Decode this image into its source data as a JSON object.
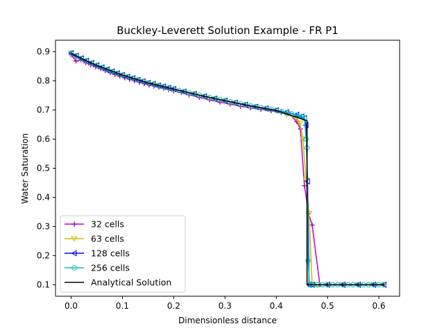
{
  "chart_data": {
    "type": "line",
    "title": "Buckley-Leverett Solution Example - FR P1",
    "xlabel": "Dimensionless distance",
    "ylabel": "Water Saturation",
    "xlim": [
      -0.0305,
      0.6405
    ],
    "ylim": [
      0.0605,
      0.9395
    ],
    "xticks": [
      "0.0",
      "0.1",
      "0.2",
      "0.3",
      "0.4",
      "0.5",
      "0.6"
    ],
    "yticks": [
      "0.1",
      "0.2",
      "0.3",
      "0.4",
      "0.5",
      "0.6",
      "0.7",
      "0.8",
      "0.9"
    ],
    "grid": false,
    "legend_position": "lower-left",
    "series": [
      {
        "name": "32 cells",
        "color": "#bf00bf",
        "marker": "plus",
        "x": [
          0.0,
          0.0095,
          0.019,
          0.0285,
          0.038,
          0.0475,
          0.057,
          0.0665,
          0.076,
          0.0855,
          0.095,
          0.1045,
          0.114,
          0.1235,
          0.133,
          0.1425,
          0.152,
          0.1615,
          0.171,
          0.1805,
          0.19,
          0.2,
          0.215,
          0.23,
          0.25,
          0.27,
          0.29,
          0.31,
          0.33,
          0.35,
          0.37,
          0.39,
          0.41,
          0.425,
          0.44,
          0.447,
          0.455,
          0.463,
          0.47,
          0.485,
          0.5,
          0.53,
          0.56,
          0.59,
          0.61
        ],
        "y": [
          0.89,
          0.868,
          0.872,
          0.862,
          0.855,
          0.848,
          0.842,
          0.835,
          0.828,
          0.822,
          0.816,
          0.81,
          0.805,
          0.8,
          0.795,
          0.79,
          0.786,
          0.782,
          0.778,
          0.774,
          0.77,
          0.765,
          0.76,
          0.752,
          0.743,
          0.735,
          0.727,
          0.72,
          0.713,
          0.707,
          0.702,
          0.697,
          0.692,
          0.688,
          0.66,
          0.635,
          0.44,
          0.345,
          0.305,
          0.1,
          0.1,
          0.1,
          0.1,
          0.1,
          0.1
        ]
      },
      {
        "name": "63 cells",
        "color": "#bfbf00",
        "marker": "triangle-down",
        "x": [
          0.0,
          0.01,
          0.02,
          0.03,
          0.04,
          0.05,
          0.06,
          0.07,
          0.08,
          0.09,
          0.1,
          0.11,
          0.12,
          0.13,
          0.14,
          0.15,
          0.16,
          0.17,
          0.18,
          0.19,
          0.2,
          0.22,
          0.24,
          0.26,
          0.28,
          0.3,
          0.32,
          0.34,
          0.36,
          0.38,
          0.4,
          0.42,
          0.44,
          0.446,
          0.452,
          0.458,
          0.464,
          0.47,
          0.48,
          0.5,
          0.53,
          0.56,
          0.59,
          0.61
        ],
        "y": [
          0.895,
          0.885,
          0.876,
          0.868,
          0.86,
          0.852,
          0.845,
          0.838,
          0.831,
          0.825,
          0.819,
          0.813,
          0.808,
          0.803,
          0.798,
          0.793,
          0.788,
          0.784,
          0.779,
          0.775,
          0.771,
          0.762,
          0.754,
          0.746,
          0.738,
          0.731,
          0.724,
          0.717,
          0.711,
          0.704,
          0.698,
          0.684,
          0.672,
          0.655,
          0.6,
          0.46,
          0.345,
          0.1,
          0.1,
          0.1,
          0.1,
          0.1,
          0.1,
          0.1
        ]
      },
      {
        "name": "128 cells",
        "color": "#0000ff",
        "marker": "triangle-left",
        "x": [
          0.0,
          0.01,
          0.02,
          0.03,
          0.04,
          0.05,
          0.06,
          0.07,
          0.08,
          0.09,
          0.1,
          0.11,
          0.12,
          0.13,
          0.14,
          0.15,
          0.16,
          0.17,
          0.18,
          0.19,
          0.2,
          0.22,
          0.24,
          0.26,
          0.28,
          0.3,
          0.32,
          0.34,
          0.36,
          0.38,
          0.4,
          0.42,
          0.44,
          0.45,
          0.455,
          0.458,
          0.461,
          0.464,
          0.47,
          0.5,
          0.53,
          0.56,
          0.59,
          0.61
        ],
        "y": [
          0.895,
          0.886,
          0.877,
          0.869,
          0.861,
          0.853,
          0.846,
          0.839,
          0.832,
          0.826,
          0.82,
          0.814,
          0.809,
          0.803,
          0.798,
          0.793,
          0.789,
          0.784,
          0.78,
          0.776,
          0.772,
          0.763,
          0.755,
          0.747,
          0.739,
          0.732,
          0.725,
          0.718,
          0.711,
          0.705,
          0.699,
          0.692,
          0.684,
          0.678,
          0.672,
          0.648,
          0.455,
          0.1,
          0.1,
          0.1,
          0.1,
          0.1,
          0.1,
          0.1
        ]
      },
      {
        "name": "256 cells",
        "color": "#00bfbf",
        "marker": "circle",
        "x": [
          0.0,
          0.01,
          0.02,
          0.03,
          0.04,
          0.05,
          0.06,
          0.07,
          0.08,
          0.09,
          0.1,
          0.11,
          0.12,
          0.13,
          0.14,
          0.15,
          0.16,
          0.17,
          0.18,
          0.19,
          0.2,
          0.21,
          0.22,
          0.23,
          0.24,
          0.25,
          0.26,
          0.27,
          0.28,
          0.29,
          0.3,
          0.31,
          0.32,
          0.33,
          0.34,
          0.35,
          0.36,
          0.37,
          0.38,
          0.39,
          0.4,
          0.41,
          0.42,
          0.43,
          0.44,
          0.45,
          0.455,
          0.458,
          0.46,
          0.462,
          0.465,
          0.47,
          0.48,
          0.49,
          0.5,
          0.51,
          0.52,
          0.53,
          0.54,
          0.55,
          0.56,
          0.57,
          0.58,
          0.59,
          0.6,
          0.61
        ],
        "y": [
          0.895,
          0.886,
          0.877,
          0.869,
          0.861,
          0.853,
          0.846,
          0.839,
          0.832,
          0.826,
          0.82,
          0.814,
          0.809,
          0.803,
          0.798,
          0.793,
          0.789,
          0.784,
          0.78,
          0.776,
          0.772,
          0.767,
          0.763,
          0.759,
          0.755,
          0.751,
          0.747,
          0.743,
          0.739,
          0.736,
          0.732,
          0.728,
          0.725,
          0.721,
          0.718,
          0.714,
          0.711,
          0.708,
          0.705,
          0.702,
          0.699,
          0.695,
          0.691,
          0.687,
          0.682,
          0.678,
          0.672,
          0.6,
          0.57,
          0.183,
          0.1,
          0.1,
          0.1,
          0.1,
          0.1,
          0.1,
          0.1,
          0.1,
          0.1,
          0.1,
          0.1,
          0.1,
          0.1,
          0.1,
          0.1,
          0.1
        ]
      },
      {
        "name": "Analytical Solution",
        "color": "#000000",
        "marker": "none",
        "x": [
          0.0,
          0.02,
          0.05,
          0.1,
          0.15,
          0.2,
          0.25,
          0.3,
          0.35,
          0.4,
          0.44,
          0.46,
          0.46,
          0.5,
          0.61
        ],
        "y": [
          0.895,
          0.877,
          0.853,
          0.82,
          0.793,
          0.772,
          0.751,
          0.732,
          0.714,
          0.698,
          0.675,
          0.663,
          0.1,
          0.1,
          0.1
        ]
      }
    ]
  }
}
